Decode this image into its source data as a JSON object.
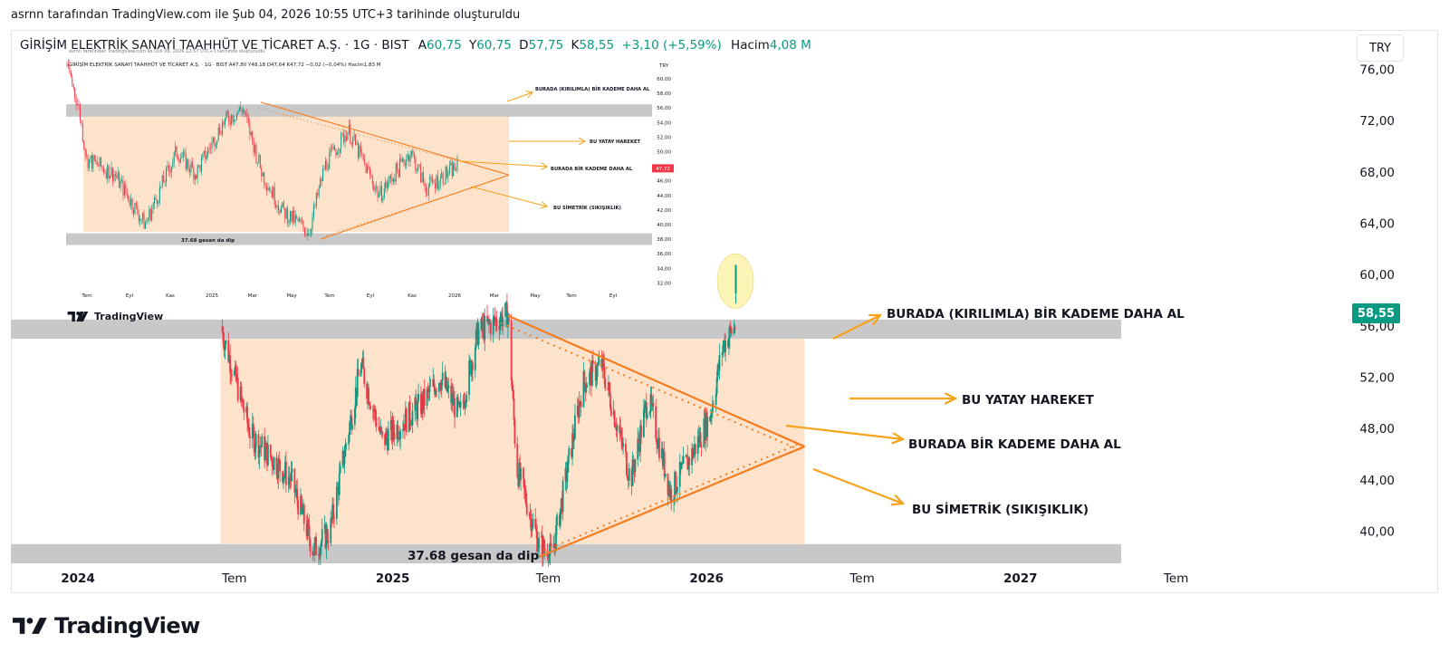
{
  "caption": "asrnn tarafından TradingView.com ile Şub 04, 2026 10:55 UTC+3 tarihinde oluşturuldu",
  "legend": {
    "symbol": "GİRİŞİM ELEKTRİK SANAYİ TAAHHÜT VE TİCARET A.Ş. · 1G · BIST",
    "open_label": "A",
    "open": "60,75",
    "high_label": "Y",
    "high": "60,75",
    "low_label": "D",
    "low": "57,75",
    "close_label": "K",
    "close": "58,55",
    "change": "+3,10 (+5,59%)",
    "volume_label": "Hacim",
    "volume": "4,08 M"
  },
  "currency": "TRY",
  "last_price": "58,55",
  "brand": "TradingView",
  "colors": {
    "up": "#089981",
    "down": "#f23645",
    "zone": "#fde3cc",
    "band": "#c8c8c8",
    "arrow": "#f7a21b",
    "trendline": "#f57c1f",
    "highlight": "#fdf5b8",
    "badge": "#089981"
  },
  "chart_data": {
    "type": "candlestick",
    "interval": "1G",
    "y_axis": {
      "ticks": [
        40,
        44,
        48,
        52,
        56,
        60,
        64,
        68,
        72,
        76
      ],
      "tick_labels": [
        "40,00",
        "44,00",
        "48,00",
        "52,00",
        "56,00",
        "60,00",
        "64,00",
        "68,00",
        "72,00",
        "76,00"
      ],
      "range": [
        37.5,
        79
      ]
    },
    "x_axis": {
      "tick_labels": [
        "2024",
        "Tem",
        "2025",
        "Tem",
        "2026",
        "Tem",
        "2027",
        "Tem"
      ],
      "range": [
        "2023-10-15",
        "2027-12-20"
      ]
    },
    "series_range": {
      "start": "2024-06-15",
      "end": "2026-02-04",
      "high": 60.75,
      "low": 37.68
    },
    "last_candle": {
      "open": 60.75,
      "high": 60.75,
      "low": 57.75,
      "close": 58.55
    },
    "zones": [
      {
        "kind": "band",
        "y": [
          55,
          56.5
        ]
      },
      {
        "kind": "band",
        "y": [
          37.5,
          39
        ]
      },
      {
        "kind": "rect",
        "y": [
          39,
          55
        ],
        "x": [
          "2024-06-15",
          "2026-04-25"
        ]
      }
    ],
    "trendlines": [
      {
        "from": [
          "2025-05-15",
          56.8
        ],
        "to": [
          "2026-04-25",
          46.6
        ]
      },
      {
        "from": [
          "2025-06-20",
          38
        ],
        "to": [
          "2026-04-25",
          46.6
        ]
      }
    ],
    "annotations": [
      "BURADA (KIRILIMLA) BİR KADEME DAHA AL",
      "BU YATAY HAREKET",
      "BURADA BİR KADEME DAHA AL",
      "BU SİMETRİK (SIKIŞIKLIK)",
      "37.68 gesan da dip"
    ]
  },
  "inset": {
    "caption": "asrnn tarafından TradingView.com ile Ock 08, 2026 12:57 UTC+3 tarihinde oluşturuldu",
    "legend": "GİRİŞİM ELEKTRİK SANAYİ TAAHHÜT VE TİCARET A.Ş. · 1G · BIST  A47,80  Y48,18  D47,64  K47,72  −0,02 (−0,04%)  Hacim1,83 M",
    "currency": "TRY",
    "last_price": "47,72",
    "y_ticks": [
      "60,00",
      "58,00",
      "56,00",
      "54,00",
      "52,00",
      "50,00",
      "48,00",
      "46,00",
      "44,00",
      "42,00",
      "40,00",
      "38,00",
      "36,00",
      "34,00",
      "32,00"
    ],
    "x_ticks": [
      "Tem",
      "Eyl",
      "Kas",
      "2025",
      "Mar",
      "May",
      "Tem",
      "Eyl",
      "Kas",
      "2026",
      "Mar",
      "May",
      "Tem",
      "Eyl"
    ],
    "annotations": [
      "BURADA (KIRILIMLA) BİR KADEME DAHA AL",
      "BU YATAY HAREKET",
      "BURADA BİR KADEME DAHA AL",
      "BU SİMETRİK (SIKIŞIKLIK)",
      "37.68 gesan da dip"
    ],
    "brand": "TradingView"
  }
}
